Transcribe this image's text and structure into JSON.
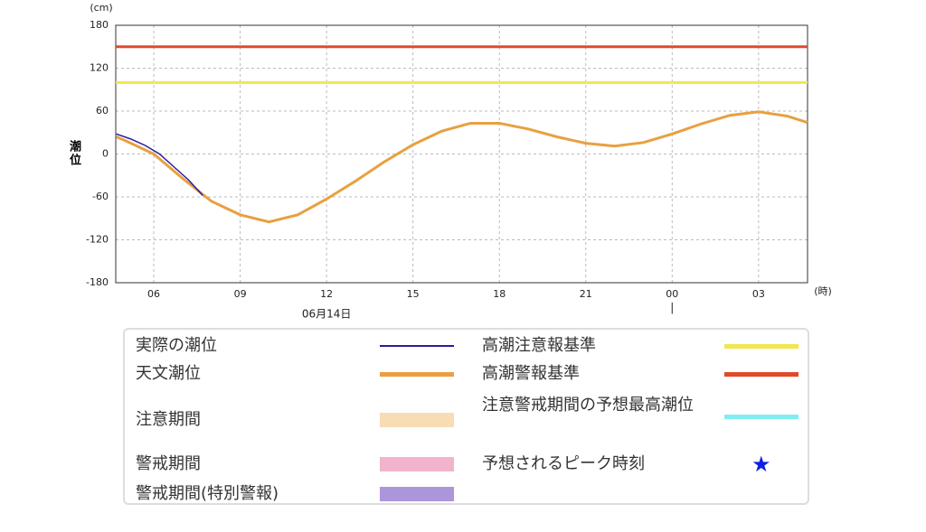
{
  "chart_data": {
    "type": "line",
    "y_unit": "(cm)",
    "x_unit": "(時)",
    "y_label": "潮位",
    "date_label": {
      "text": "06月14日",
      "x": 12
    },
    "day_boundary": {
      "text": "|",
      "x": 24
    },
    "xlim": [
      4.68,
      28.7
    ],
    "ylim": [
      -180,
      180
    ],
    "xticks": [
      {
        "value": 6,
        "label": "06"
      },
      {
        "value": 9,
        "label": "09"
      },
      12,
      15,
      18,
      21,
      {
        "value": 24,
        "label": "00"
      },
      {
        "value": 27,
        "label": "03"
      }
    ],
    "yticks": [
      180,
      120,
      60,
      0,
      -60,
      -120,
      -180
    ],
    "grid": true,
    "series": [
      {
        "name": "実際の潮位",
        "color": "#2a1a9e",
        "x": [
          4.7,
          5.2,
          5.7,
          6.2,
          6.7,
          7.2,
          7.7
        ],
        "values": [
          28,
          21,
          12,
          0,
          -18,
          -36,
          -58
        ]
      },
      {
        "name": "天文潮位",
        "color": "#e8a040",
        "x": [
          4.7,
          5,
          6,
          7,
          8,
          9,
          10,
          11,
          12,
          13,
          14,
          15,
          16,
          17,
          18,
          19,
          20,
          21,
          22,
          23,
          24,
          25,
          26,
          27,
          28,
          28.7
        ],
        "values": [
          24,
          19,
          0,
          -34,
          -66,
          -85,
          -95,
          -85,
          -63,
          -38,
          -11,
          13,
          32,
          43,
          43,
          35,
          24,
          15,
          11,
          16,
          28,
          42,
          54,
          59,
          53,
          44
        ]
      }
    ],
    "reference_lines": [
      {
        "name": "高潮警報基準",
        "color": "#e04a2a",
        "value": 150
      },
      {
        "name": "高潮注意報基準",
        "color": "#f0e650",
        "value": 100
      }
    ],
    "legend": [
      {
        "name": "実際の潮位",
        "color": "#2a1a9e",
        "kind": "line"
      },
      {
        "name": "天文潮位",
        "color": "#e8a040",
        "kind": "line"
      },
      {
        "name": "注意期間",
        "color": "#f7dcb4",
        "kind": "box"
      },
      {
        "name": "警戒期間",
        "color": "#f2b4cc",
        "kind": "box"
      },
      {
        "name": "警戒期間(特別警報)",
        "color": "#ab96dc",
        "kind": "box"
      },
      {
        "name": "高潮注意報基準",
        "color": "#f0e650",
        "kind": "line"
      },
      {
        "name": "高潮警報基準",
        "color": "#e04a2a",
        "kind": "line"
      },
      {
        "name": "注意警戒期間の予想最高潮位",
        "color": "#80eef0",
        "kind": "line"
      },
      {
        "name": "予想されるピーク時刻",
        "color": "#1020e0",
        "kind": "star",
        "symbol": "★"
      }
    ]
  }
}
